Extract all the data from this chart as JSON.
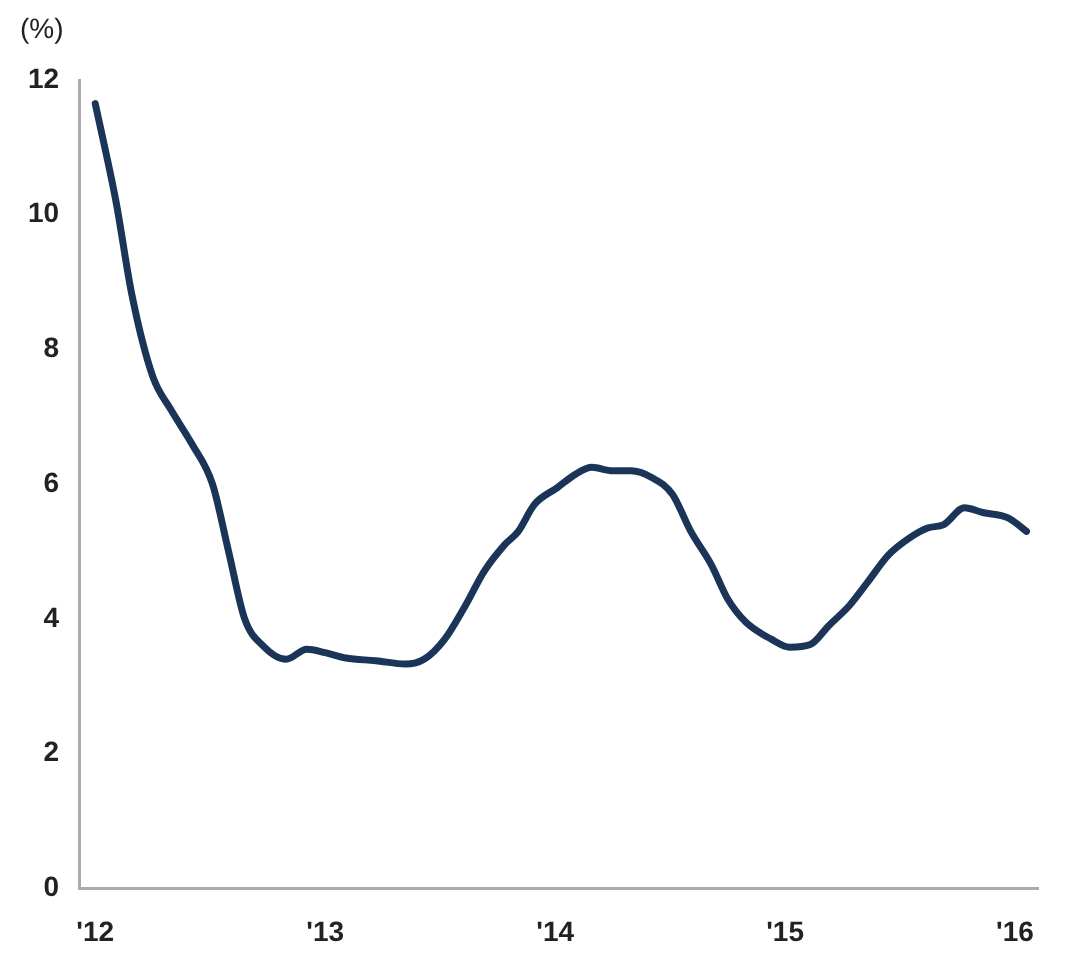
{
  "chart_data": {
    "type": "line",
    "ylabel": "(%)",
    "x": [
      2012.0,
      2012.09,
      2012.16,
      2012.25,
      2012.33,
      2012.42,
      2012.51,
      2012.58,
      2012.65,
      2012.73,
      2012.83,
      2012.92,
      2013.0,
      2013.09,
      2013.22,
      2013.35,
      2013.43,
      2013.52,
      2013.61,
      2013.69,
      2013.78,
      2013.84,
      2013.91,
      2014.01,
      2014.09,
      2014.16,
      2014.25,
      2014.33,
      2014.42,
      2014.51,
      2014.59,
      2014.68,
      2014.75,
      2014.83,
      2014.94,
      2015.02,
      2015.11,
      2015.19,
      2015.28,
      2015.36,
      2015.45,
      2015.54,
      2015.62,
      2015.69,
      2015.78,
      2015.86,
      2015.97,
      2016.05
    ],
    "series": [
      {
        "color": "#1b3558",
        "values": [
          11.65,
          10.2,
          8.8,
          7.6,
          7.1,
          6.6,
          6.0,
          5.0,
          4.0,
          3.6,
          3.4,
          3.55,
          3.5,
          3.42,
          3.38,
          3.33,
          3.4,
          3.7,
          4.2,
          4.7,
          5.1,
          5.3,
          5.7,
          5.95,
          6.15,
          6.25,
          6.2,
          6.2,
          6.1,
          5.85,
          5.3,
          4.8,
          4.3,
          3.95,
          3.7,
          3.58,
          3.62,
          3.9,
          4.2,
          4.55,
          4.95,
          5.2,
          5.35,
          5.4,
          5.65,
          5.58,
          5.5,
          5.3
        ]
      }
    ],
    "xlim": [
      2011.93,
      2016.1
    ],
    "xticks": [
      {
        "value": 2012,
        "label": "'12"
      },
      {
        "value": 2013,
        "label": "'13"
      },
      {
        "value": 2014,
        "label": "'14"
      },
      {
        "value": 2015,
        "label": "'15"
      },
      {
        "value": 2016,
        "label": "'16"
      }
    ],
    "ylim": [
      0,
      12
    ],
    "yticks": [
      0,
      2,
      4,
      6,
      8,
      10,
      12
    ],
    "grid": false,
    "legend": false,
    "marker": "none",
    "line_style": "solid"
  }
}
